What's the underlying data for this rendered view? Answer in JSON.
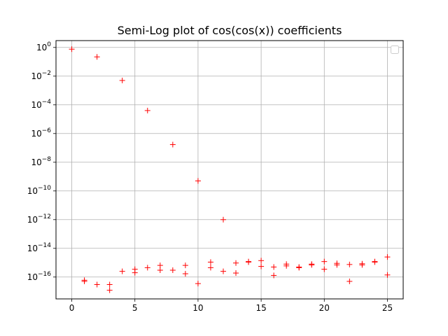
{
  "chart_data": {
    "type": "scatter",
    "title": "Semi-Log plot of cos(cos(x)) coefficients",
    "xlabel": "",
    "ylabel": "",
    "yscale": "log",
    "grid": true,
    "legend": "top-right (empty)",
    "marker": "+",
    "color": "#ff0000",
    "xlim": [
      -1.25,
      26.25
    ],
    "ylim": [
      3e-18,
      3
    ],
    "x_ticks": [
      0,
      5,
      10,
      15,
      20,
      25
    ],
    "x_tick_labels": [
      "0",
      "5",
      "10",
      "15",
      "20",
      "25"
    ],
    "y_ticks": [
      1,
      0.01,
      0.0001,
      1e-06,
      1e-08,
      1e-10,
      1e-12,
      1e-14,
      1e-16
    ],
    "y_tick_labels": [
      {
        "base": "10",
        "exp": "0"
      },
      {
        "base": "10",
        "exp": "−2"
      },
      {
        "base": "10",
        "exp": "−4"
      },
      {
        "base": "10",
        "exp": "−6"
      },
      {
        "base": "10",
        "exp": "−8"
      },
      {
        "base": "10",
        "exp": "−10"
      },
      {
        "base": "10",
        "exp": "−12"
      },
      {
        "base": "10",
        "exp": "−14"
      },
      {
        "base": "10",
        "exp": "−16"
      }
    ],
    "points": [
      [
        0,
        0.76
      ],
      [
        1,
        5e-17
      ],
      [
        1,
        6e-17
      ],
      [
        2,
        0.22
      ],
      [
        2,
        3e-17
      ],
      [
        3,
        1.2e-17
      ],
      [
        3,
        3e-17
      ],
      [
        4,
        0.005
      ],
      [
        4,
        2.5e-16
      ],
      [
        5,
        2e-16
      ],
      [
        5,
        3.5e-16
      ],
      [
        6,
        4e-05
      ],
      [
        6,
        4.5e-16
      ],
      [
        7,
        3e-16
      ],
      [
        7,
        6.5e-16
      ],
      [
        8,
        1.7e-07
      ],
      [
        8,
        3e-16
      ],
      [
        9,
        1.7e-16
      ],
      [
        9,
        6.5e-16
      ],
      [
        10,
        5e-10
      ],
      [
        10,
        3.5e-17
      ],
      [
        11,
        4.5e-16
      ],
      [
        11,
        1.1e-15
      ],
      [
        12,
        1e-12
      ],
      [
        12,
        2.5e-16
      ],
      [
        13,
        1.9e-16
      ],
      [
        13,
        9.5e-16
      ],
      [
        14,
        1.1e-15
      ],
      [
        14,
        1.2e-15
      ],
      [
        15,
        5.5e-16
      ],
      [
        15,
        1.4e-15
      ],
      [
        16,
        1.3e-16
      ],
      [
        16,
        5e-16
      ],
      [
        17,
        6e-16
      ],
      [
        17,
        8e-16
      ],
      [
        18,
        4.5e-16
      ],
      [
        18,
        5e-16
      ],
      [
        19,
        7e-16
      ],
      [
        19,
        8e-16
      ],
      [
        20,
        3.5e-16
      ],
      [
        20,
        1.2e-15
      ],
      [
        21,
        7e-16
      ],
      [
        21,
        9e-16
      ],
      [
        22,
        5e-17
      ],
      [
        22,
        7.5e-16
      ],
      [
        23,
        7e-16
      ],
      [
        23,
        8.5e-16
      ],
      [
        24,
        1.1e-15
      ],
      [
        24,
        1.2e-15
      ],
      [
        25,
        1.4e-16
      ],
      [
        25,
        2.5e-15
      ]
    ]
  }
}
